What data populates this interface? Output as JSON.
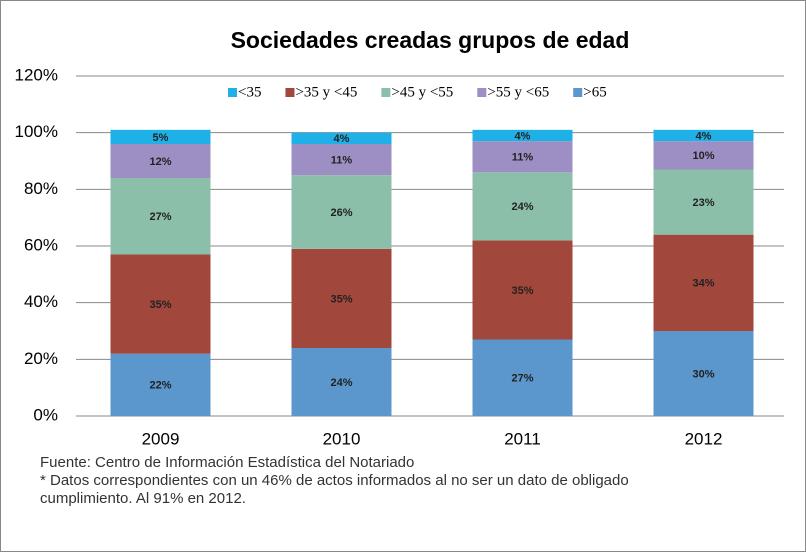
{
  "chart_data": {
    "type": "stacked_bar",
    "title": "Sociedades creadas grupos de edad",
    "categories": [
      "2009",
      "2010",
      "2011",
      "2012"
    ],
    "series": [
      {
        "name": "<35",
        "color": "#1eb0e6",
        "values": [
          5,
          4,
          4,
          4
        ],
        "value_labels": [
          "5%",
          "4%",
          "4%",
          "4%"
        ]
      },
      {
        "name": ">35 y <45",
        "color": "#a2473b",
        "values": [
          35,
          35,
          35,
          34
        ],
        "value_labels": [
          "35%",
          "35%",
          "35%",
          "34%"
        ]
      },
      {
        "name": ">45 y <55",
        "color": "#8cbfaa",
        "values": [
          27,
          26,
          24,
          23
        ],
        "value_labels": [
          "27%",
          "26%",
          "24%",
          "23%"
        ]
      },
      {
        "name": ">55 y <65",
        "color": "#9d8fc4",
        "values": [
          12,
          11,
          11,
          10
        ],
        "value_labels": [
          "12%",
          "11%",
          "11%",
          "10%"
        ]
      },
      {
        "name": ">65",
        "color": "#5b96cc",
        "values": [
          22,
          24,
          27,
          30
        ],
        "value_labels": [
          "22%",
          "24%",
          "27%",
          "30%"
        ]
      }
    ],
    "ylim": [
      0,
      120
    ],
    "yticks": [
      {
        "value": 0,
        "label": "0%"
      },
      {
        "value": 20,
        "label": "20%"
      },
      {
        "value": 40,
        "label": "40%"
      },
      {
        "value": 60,
        "label": "60%"
      },
      {
        "value": 80,
        "label": "80%"
      },
      {
        "value": 100,
        "label": "100%"
      },
      {
        "value": 120,
        "label": "120%"
      }
    ],
    "grid": true,
    "notes": [
      "Fuente: Centro de Información Estadística del Notariado",
      "* Datos correspondientes con un 46% de actos informados al no ser un dato de obligado",
      "cumplimiento. Al 91% en 2012."
    ]
  }
}
